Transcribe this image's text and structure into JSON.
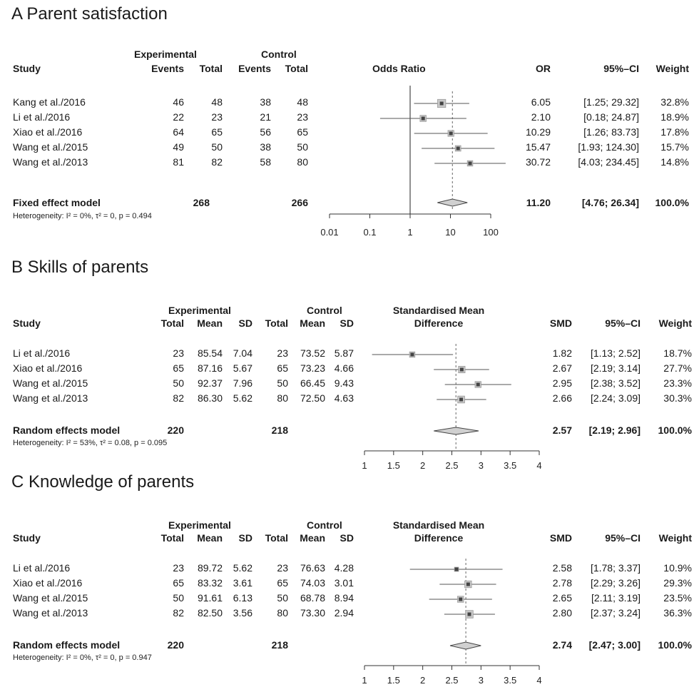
{
  "chart_data": [
    {
      "type": "forest",
      "title": "A Parent satisfaction",
      "measure": "OR",
      "scale": "log",
      "xlim": [
        0.01,
        100
      ],
      "ticks": [
        0.01,
        0.1,
        1,
        10,
        100
      ],
      "tick_labels": [
        "0.01",
        "0.1",
        "1",
        "10",
        "100"
      ],
      "reference_line": 1,
      "pooled_line": 11.2,
      "headers": {
        "group_exp": "Experimental",
        "group_ctrl": "Control",
        "study": "Study",
        "events_exp": "Events",
        "total_exp": "Total",
        "events_ctrl": "Events",
        "total_ctrl": "Total",
        "plot": "Odds Ratio",
        "effect": "OR",
        "ci": "95%–CI",
        "weight": "Weight"
      },
      "studies": [
        {
          "study": "Kang et al./2016",
          "events_exp": "46",
          "total_exp": "48",
          "events_ctrl": "38",
          "total_ctrl": "48",
          "est": 6.05,
          "lo": 1.25,
          "hi": 29.32,
          "effect": "6.05",
          "ci": "[1.25;  29.32]",
          "weight": "32.8%",
          "w": 32.8
        },
        {
          "study": "Li et al./2016",
          "events_exp": "22",
          "total_exp": "23",
          "events_ctrl": "21",
          "total_ctrl": "23",
          "est": 2.1,
          "lo": 0.18,
          "hi": 24.87,
          "effect": "2.10",
          "ci": "[0.18;  24.87]",
          "weight": "18.9%",
          "w": 18.9
        },
        {
          "study": "Xiao et al./2016",
          "events_exp": "64",
          "total_exp": "65",
          "events_ctrl": "56",
          "total_ctrl": "65",
          "est": 10.29,
          "lo": 1.26,
          "hi": 83.73,
          "effect": "10.29",
          "ci": "[1.26;  83.73]",
          "weight": "17.8%",
          "w": 17.8
        },
        {
          "study": "Wang et al./2015",
          "events_exp": "49",
          "total_exp": "50",
          "events_ctrl": "38",
          "total_ctrl": "50",
          "est": 15.47,
          "lo": 1.93,
          "hi": 124.3,
          "effect": "15.47",
          "ci": "[1.93; 124.30]",
          "weight": "15.7%",
          "w": 15.7
        },
        {
          "study": "Wang et al./2013",
          "events_exp": "81",
          "total_exp": "82",
          "events_ctrl": "58",
          "total_ctrl": "80",
          "est": 30.72,
          "lo": 4.03,
          "hi": 234.45,
          "effect": "30.72",
          "ci": "[4.03; 234.45]",
          "weight": "14.8%",
          "w": 14.8
        }
      ],
      "pooled": {
        "label": "Fixed effect model",
        "total_exp": "268",
        "total_ctrl": "266",
        "est": 11.2,
        "lo": 4.76,
        "hi": 26.34,
        "effect": "11.20",
        "ci": "[4.76;  26.34]",
        "weight": "100.0%"
      },
      "heterogeneity": "Heterogeneity: I² = 0%, τ² = 0, p = 0.494"
    },
    {
      "type": "forest",
      "title": "B Skills of parents",
      "measure": "SMD",
      "scale": "linear",
      "xlim": [
        1,
        4
      ],
      "ticks": [
        1,
        1.5,
        2,
        2.5,
        3,
        3.5,
        4
      ],
      "tick_labels": [
        "1",
        "1.5",
        "2",
        "2.5",
        "3",
        "3.5",
        "4"
      ],
      "pooled_line": 2.57,
      "headers": {
        "group_exp": "Experimental",
        "group_ctrl": "Control",
        "study": "Study",
        "total_exp": "Total",
        "mean_exp": "Mean",
        "sd_exp": "SD",
        "total_ctrl": "Total",
        "mean_ctrl": "Mean",
        "sd_ctrl": "SD",
        "plot_line1": "Standardised Mean",
        "plot_line2": "Difference",
        "effect": "SMD",
        "ci": "95%–CI",
        "weight": "Weight"
      },
      "studies": [
        {
          "study": "Li et al./2016",
          "total_exp": "23",
          "mean_exp": "85.54",
          "sd_exp": "7.04",
          "total_ctrl": "23",
          "mean_ctrl": "73.52",
          "sd_ctrl": "5.87",
          "est": 1.82,
          "lo": 1.13,
          "hi": 2.52,
          "effect": "1.82",
          "ci": "[1.13; 2.52]",
          "weight": "18.7%",
          "w": 18.7
        },
        {
          "study": "Xiao et al./2016",
          "total_exp": "65",
          "mean_exp": "87.16",
          "sd_exp": "5.67",
          "total_ctrl": "65",
          "mean_ctrl": "73.23",
          "sd_ctrl": "4.66",
          "est": 2.67,
          "lo": 2.19,
          "hi": 3.14,
          "effect": "2.67",
          "ci": "[2.19; 3.14]",
          "weight": "27.7%",
          "w": 27.7
        },
        {
          "study": "Wang et al./2015",
          "total_exp": "50",
          "mean_exp": "92.37",
          "sd_exp": "7.96",
          "total_ctrl": "50",
          "mean_ctrl": "66.45",
          "sd_ctrl": "9.43",
          "est": 2.95,
          "lo": 2.38,
          "hi": 3.52,
          "effect": "2.95",
          "ci": "[2.38; 3.52]",
          "weight": "23.3%",
          "w": 23.3
        },
        {
          "study": "Wang et al./2013",
          "total_exp": "82",
          "mean_exp": "86.30",
          "sd_exp": "5.62",
          "total_ctrl": "80",
          "mean_ctrl": "72.50",
          "sd_ctrl": "4.63",
          "est": 2.66,
          "lo": 2.24,
          "hi": 3.09,
          "effect": "2.66",
          "ci": "[2.24; 3.09]",
          "weight": "30.3%",
          "w": 30.3
        }
      ],
      "pooled": {
        "label": "Random effects model",
        "total_exp": "220",
        "total_ctrl": "218",
        "est": 2.57,
        "lo": 2.19,
        "hi": 2.96,
        "effect": "2.57",
        "ci": "[2.19; 2.96]",
        "weight": "100.0%"
      },
      "heterogeneity": "Heterogeneity: I² = 53%, τ² = 0.08, p = 0.095"
    },
    {
      "type": "forest",
      "title": "C Knowledge of parents",
      "measure": "SMD",
      "scale": "linear",
      "xlim": [
        1,
        4
      ],
      "ticks": [
        1,
        1.5,
        2,
        2.5,
        3,
        3.5,
        4
      ],
      "tick_labels": [
        "1",
        "1.5",
        "2",
        "2.5",
        "3",
        "3.5",
        "4"
      ],
      "pooled_line": 2.74,
      "headers": {
        "group_exp": "Experimental",
        "group_ctrl": "Control",
        "study": "Study",
        "total_exp": "Total",
        "mean_exp": "Mean",
        "sd_exp": "SD",
        "total_ctrl": "Total",
        "mean_ctrl": "Mean",
        "sd_ctrl": "SD",
        "plot_line1": "Standardised Mean",
        "plot_line2": "Difference",
        "effect": "SMD",
        "ci": "95%–CI",
        "weight": "Weight"
      },
      "studies": [
        {
          "study": "Li et al./2016",
          "total_exp": "23",
          "mean_exp": "89.72",
          "sd_exp": "5.62",
          "total_ctrl": "23",
          "mean_ctrl": "76.63",
          "sd_ctrl": "4.28",
          "est": 2.58,
          "lo": 1.78,
          "hi": 3.37,
          "effect": "2.58",
          "ci": "[1.78; 3.37]",
          "weight": "10.9%",
          "w": 10.9
        },
        {
          "study": "Xiao et al./2016",
          "total_exp": "65",
          "mean_exp": "83.32",
          "sd_exp": "3.61",
          "total_ctrl": "65",
          "mean_ctrl": "74.03",
          "sd_ctrl": "3.01",
          "est": 2.78,
          "lo": 2.29,
          "hi": 3.26,
          "effect": "2.78",
          "ci": "[2.29; 3.26]",
          "weight": "29.3%",
          "w": 29.3
        },
        {
          "study": "Wang et al./2015",
          "total_exp": "50",
          "mean_exp": "91.61",
          "sd_exp": "6.13",
          "total_ctrl": "50",
          "mean_ctrl": "68.78",
          "sd_ctrl": "8.94",
          "est": 2.65,
          "lo": 2.11,
          "hi": 3.19,
          "effect": "2.65",
          "ci": "[2.11; 3.19]",
          "weight": "23.5%",
          "w": 23.5
        },
        {
          "study": "Wang et al./2013",
          "total_exp": "82",
          "mean_exp": "82.50",
          "sd_exp": "3.56",
          "total_ctrl": "80",
          "mean_ctrl": "73.30",
          "sd_ctrl": "2.94",
          "est": 2.8,
          "lo": 2.37,
          "hi": 3.24,
          "effect": "2.80",
          "ci": "[2.37; 3.24]",
          "weight": "36.3%",
          "w": 36.3
        }
      ],
      "pooled": {
        "label": "Random effects model",
        "total_exp": "220",
        "total_ctrl": "218",
        "est": 2.74,
        "lo": 2.47,
        "hi": 3.0,
        "effect": "2.74",
        "ci": "[2.47; 3.00]",
        "weight": "100.0%"
      },
      "heterogeneity": "Heterogeneity: I² = 0%, τ² = 0, p = 0.947"
    }
  ]
}
